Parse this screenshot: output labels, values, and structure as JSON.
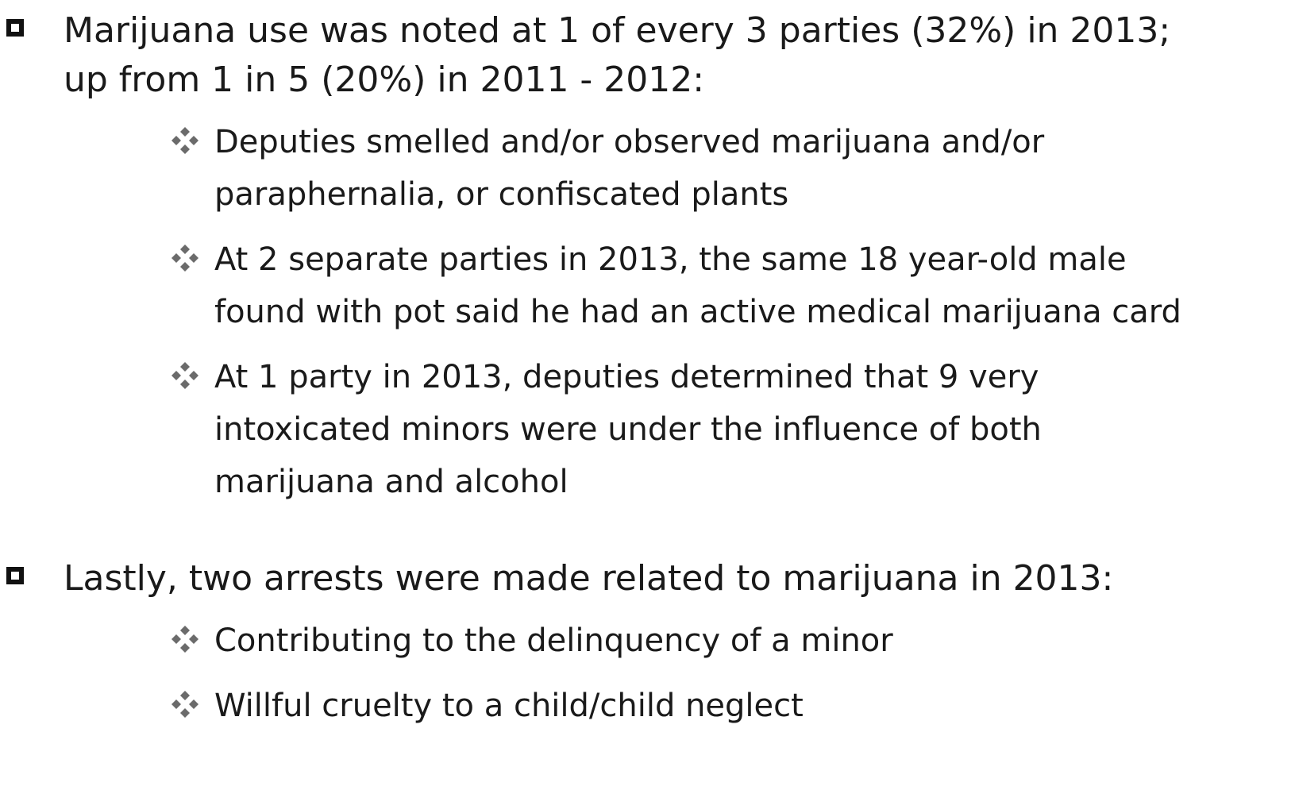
{
  "items": [
    {
      "lines": [
        "Marijuana use was noted at 1 of every 3 parties (32%) in 2013;",
        "up from 1 in 5 (20%) in 2011 - 2012:"
      ],
      "subitems": [
        {
          "lines": [
            "Deputies smelled and/or observed marijuana and/or",
            "paraphernalia, or confiscated plants"
          ]
        },
        {
          "lines": [
            "At 2 separate parties in 2013, the same 18 year-old male",
            "found with pot said he had an active medical marijuana card"
          ]
        },
        {
          "lines": [
            "At 1 party in 2013, deputies determined that 9 very",
            "intoxicated minors were under the influence of both",
            "marijuana and alcohol"
          ]
        }
      ]
    },
    {
      "lines": [
        "Lastly, two arrests were made related to marijuana in 2013:"
      ],
      "subitems": [
        {
          "lines": [
            "Contributing to the delinquency of a minor"
          ]
        },
        {
          "lines": [
            "Willful cruelty to a child/child neglect"
          ]
        }
      ]
    }
  ]
}
